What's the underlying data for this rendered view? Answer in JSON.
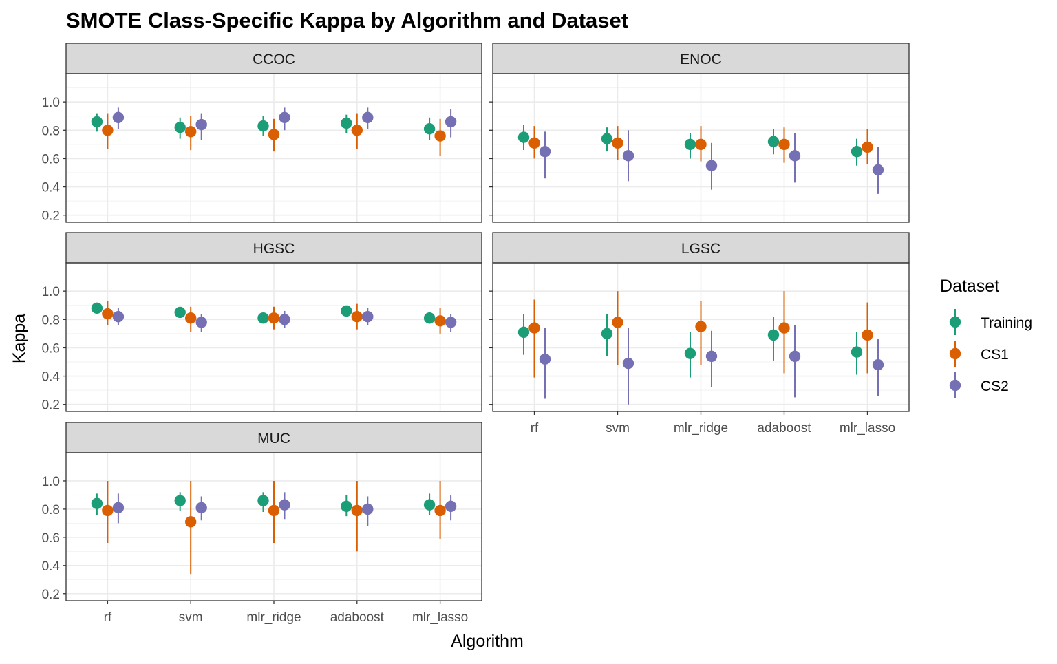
{
  "chart_data": {
    "type": "scatter",
    "title": "SMOTE Class-Specific Kappa by Algorithm and Dataset",
    "xlabel": "Algorithm",
    "ylabel": "Kappa",
    "ylim": [
      0.15,
      1.2
    ],
    "yticks": [
      0.2,
      0.4,
      0.6,
      0.8,
      1.0
    ],
    "ytick_labels": [
      "0.2",
      "0.4",
      "0.6",
      "0.8",
      "1.0"
    ],
    "categories": [
      "rf",
      "svm",
      "mlr_ridge",
      "adaboost",
      "mlr_lasso"
    ],
    "grid": true,
    "legend": {
      "title": "Dataset",
      "position": "right",
      "entries": [
        {
          "name": "Training",
          "color": "#1b9e77"
        },
        {
          "name": "CS1",
          "color": "#d95f02"
        },
        {
          "name": "CS2",
          "color": "#7570b3"
        }
      ]
    },
    "panels": [
      {
        "name": "CCOC",
        "series": [
          {
            "name": "Training",
            "values": [
              0.86,
              0.82,
              0.83,
              0.85,
              0.81
            ],
            "lower": [
              0.79,
              0.74,
              0.76,
              0.78,
              0.73
            ],
            "upper": [
              0.92,
              0.89,
              0.9,
              0.91,
              0.89
            ]
          },
          {
            "name": "CS1",
            "values": [
              0.8,
              0.79,
              0.77,
              0.8,
              0.76
            ],
            "lower": [
              0.67,
              0.66,
              0.65,
              0.67,
              0.62
            ],
            "upper": [
              0.92,
              0.9,
              0.88,
              0.92,
              0.88
            ]
          },
          {
            "name": "CS2",
            "values": [
              0.89,
              0.84,
              0.89,
              0.89,
              0.86
            ],
            "lower": [
              0.81,
              0.73,
              0.8,
              0.81,
              0.75
            ],
            "upper": [
              0.96,
              0.92,
              0.96,
              0.96,
              0.95
            ]
          }
        ]
      },
      {
        "name": "ENOC",
        "series": [
          {
            "name": "Training",
            "values": [
              0.75,
              0.74,
              0.7,
              0.72,
              0.65
            ],
            "lower": [
              0.66,
              0.65,
              0.6,
              0.63,
              0.55
            ],
            "upper": [
              0.84,
              0.82,
              0.78,
              0.81,
              0.74
            ]
          },
          {
            "name": "CS1",
            "values": [
              0.71,
              0.71,
              0.7,
              0.7,
              0.68
            ],
            "lower": [
              0.6,
              0.59,
              0.58,
              0.57,
              0.56
            ],
            "upper": [
              0.83,
              0.83,
              0.83,
              0.82,
              0.81
            ]
          },
          {
            "name": "CS2",
            "values": [
              0.65,
              0.62,
              0.55,
              0.62,
              0.52
            ],
            "lower": [
              0.46,
              0.44,
              0.38,
              0.43,
              0.35
            ],
            "upper": [
              0.79,
              0.8,
              0.71,
              0.78,
              0.68
            ]
          }
        ]
      },
      {
        "name": "HGSC",
        "series": [
          {
            "name": "Training",
            "values": [
              0.88,
              0.85,
              0.81,
              0.86,
              0.81
            ],
            "lower": [
              0.86,
              0.82,
              0.78,
              0.84,
              0.77
            ],
            "upper": [
              0.91,
              0.88,
              0.84,
              0.89,
              0.85
            ]
          },
          {
            "name": "CS1",
            "values": [
              0.84,
              0.81,
              0.81,
              0.82,
              0.79
            ],
            "lower": [
              0.76,
              0.71,
              0.73,
              0.73,
              0.7
            ],
            "upper": [
              0.93,
              0.89,
              0.89,
              0.91,
              0.88
            ]
          },
          {
            "name": "CS2",
            "values": [
              0.82,
              0.78,
              0.8,
              0.82,
              0.78
            ],
            "lower": [
              0.76,
              0.71,
              0.74,
              0.76,
              0.71
            ],
            "upper": [
              0.88,
              0.84,
              0.86,
              0.88,
              0.84
            ]
          }
        ]
      },
      {
        "name": "LGSC",
        "series": [
          {
            "name": "Training",
            "values": [
              0.71,
              0.7,
              0.56,
              0.69,
              0.57
            ],
            "lower": [
              0.55,
              0.54,
              0.39,
              0.51,
              0.41
            ],
            "upper": [
              0.84,
              0.84,
              0.71,
              0.82,
              0.71
            ]
          },
          {
            "name": "CS1",
            "values": [
              0.74,
              0.78,
              0.75,
              0.74,
              0.69
            ],
            "lower": [
              0.39,
              0.48,
              0.48,
              0.42,
              0.42
            ],
            "upper": [
              0.94,
              1.0,
              0.93,
              1.0,
              0.92
            ]
          },
          {
            "name": "CS2",
            "values": [
              0.52,
              0.49,
              0.54,
              0.54,
              0.48
            ],
            "lower": [
              0.24,
              0.2,
              0.32,
              0.25,
              0.26
            ],
            "upper": [
              0.74,
              0.74,
              0.72,
              0.76,
              0.66
            ]
          }
        ]
      },
      {
        "name": "MUC",
        "series": [
          {
            "name": "Training",
            "values": [
              0.84,
              0.86,
              0.86,
              0.82,
              0.83
            ],
            "lower": [
              0.76,
              0.79,
              0.78,
              0.75,
              0.76
            ],
            "upper": [
              0.91,
              0.92,
              0.92,
              0.9,
              0.91
            ]
          },
          {
            "name": "CS1",
            "values": [
              0.79,
              0.71,
              0.79,
              0.79,
              0.79
            ],
            "lower": [
              0.56,
              0.34,
              0.56,
              0.5,
              0.59
            ],
            "upper": [
              1.0,
              1.0,
              1.0,
              1.0,
              1.0
            ]
          },
          {
            "name": "CS2",
            "values": [
              0.81,
              0.81,
              0.83,
              0.8,
              0.82
            ],
            "lower": [
              0.7,
              0.72,
              0.73,
              0.68,
              0.72
            ],
            "upper": [
              0.91,
              0.89,
              0.92,
              0.89,
              0.9
            ]
          }
        ]
      }
    ]
  }
}
